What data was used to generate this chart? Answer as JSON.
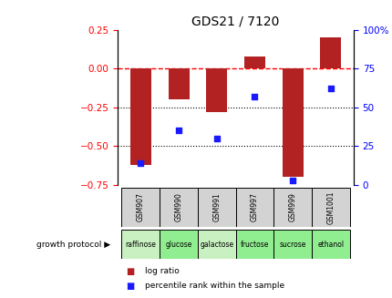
{
  "title": "GDS21 / 7120",
  "samples": [
    "GSM907",
    "GSM990",
    "GSM991",
    "GSM997",
    "GSM999",
    "GSM1001"
  ],
  "log_ratio": [
    -0.62,
    -0.2,
    -0.28,
    0.08,
    -0.7,
    0.2
  ],
  "percentile_rank": [
    14,
    35,
    30,
    57,
    3,
    62
  ],
  "growth_protocol": [
    "raffinose",
    "glucose",
    "galactose",
    "fructose",
    "sucrose",
    "ethanol"
  ],
  "bar_color": "#b22222",
  "dot_color": "#1a1aff",
  "ylim_left": [
    -0.75,
    0.25
  ],
  "ylim_right": [
    0,
    100
  ],
  "yticks_left": [
    -0.75,
    -0.5,
    -0.25,
    0,
    0.25
  ],
  "yticks_right": [
    0,
    25,
    50,
    75,
    100
  ],
  "ytick_labels_right": [
    "0",
    "25",
    "50",
    "75",
    "100%"
  ],
  "hline_y": 0,
  "dotted_hlines": [
    -0.25,
    -0.5
  ],
  "protocol_colors": [
    "#c8f0c0",
    "#90ee90",
    "#c8f0c0",
    "#90ee90",
    "#90ee90",
    "#90ee90"
  ],
  "sample_bg": "#d3d3d3",
  "bar_width": 0.55,
  "legend_labels": [
    "log ratio",
    "percentile rank within the sample"
  ],
  "legend_colors": [
    "#b22222",
    "#1a1aff"
  ],
  "growth_label": "growth protocol ▶"
}
